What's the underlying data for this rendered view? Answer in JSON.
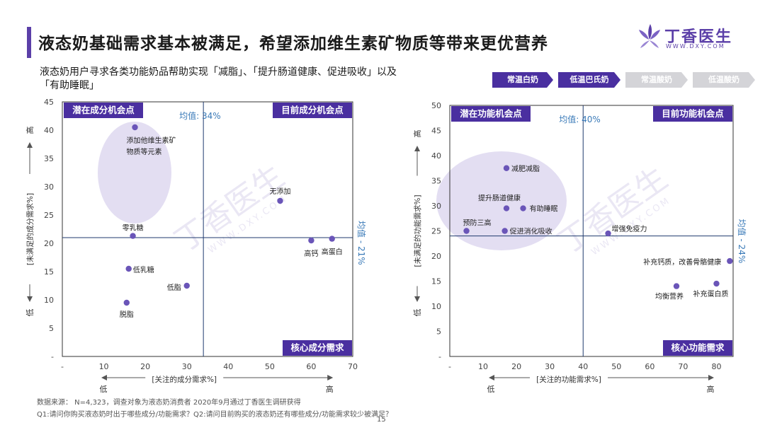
{
  "header": {
    "title": "液态奶基础需求基本被满足，希望添加维生素矿物质等带来更优营养",
    "subtitle_line1": "液态奶用户寻求各类功能奶品帮助实现「减脂」、「提升肠道健康、促进吸收」以及",
    "subtitle_line2": "「有助睡眠」"
  },
  "logo": {
    "name": "丁香医生",
    "url": "WWW.DXY.COM",
    "icon": "clove-flower-icon",
    "color": "#5b3fa8"
  },
  "watermark": {
    "name": "丁香医生",
    "url": "WWW.DXY.COM"
  },
  "product_tabs": [
    {
      "label": "常温白奶",
      "active": true
    },
    {
      "label": "低温巴氏奶",
      "active": true
    },
    {
      "label": "常温酸奶",
      "active": false
    },
    {
      "label": "低温酸奶",
      "active": false
    }
  ],
  "colors": {
    "accent": "#5b3fa8",
    "point": "#6a55b8",
    "bubble": "#e3def2",
    "mean_text": "#3a7ab8",
    "tag_bg": "#4a2fa0"
  },
  "chart_data": [
    {
      "type": "scatter",
      "xlabel": "[关注的成分需求%]",
      "ylabel": "[未满足的成分需求%]",
      "xlim": [
        0,
        70
      ],
      "ylim": [
        0,
        45
      ],
      "x_ticks": [
        "-",
        "10",
        "20",
        "30",
        "40",
        "50",
        "60",
        "70"
      ],
      "y_ticks": [
        "-",
        "5",
        "10",
        "15",
        "20",
        "25",
        "30",
        "35",
        "40",
        "45"
      ],
      "x_low": "低",
      "x_high": "高",
      "y_low": "低",
      "y_high": "高",
      "mean_x": 34,
      "mean_y": 21,
      "mean_x_label": "均值: 34%",
      "mean_y_label": "均值 - 21%",
      "quadrants": {
        "top_left": "潜在成分机会点",
        "top_right": "目前成分机会点",
        "bottom_right": "核心成分需求"
      },
      "points": [
        {
          "label": "添加他维生素矿",
          "label2": "物质等元素",
          "x": 17.5,
          "y": 40.5
        },
        {
          "label": "无添加",
          "x": 52.5,
          "y": 27.5
        },
        {
          "label": "零乳糖",
          "x": 17,
          "y": 21.3
        },
        {
          "label": "高钙",
          "x": 60,
          "y": 20.5
        },
        {
          "label": "高蛋白",
          "x": 65,
          "y": 20.8
        },
        {
          "label": "低乳糖",
          "x": 16,
          "y": 15.5
        },
        {
          "label": "低脂",
          "x": 30,
          "y": 12.5
        },
        {
          "label": "脱脂",
          "x": 15.5,
          "y": 9.5
        }
      ]
    },
    {
      "type": "scatter",
      "xlabel": "[关注的功能需求%]",
      "ylabel": "[未满足的功能需求%]",
      "xlim": [
        0,
        85
      ],
      "ylim": [
        0,
        50
      ],
      "x_ticks": [
        "-",
        "10",
        "20",
        "30",
        "40",
        "50",
        "60",
        "70",
        "80"
      ],
      "y_ticks": [
        "-",
        "5",
        "10",
        "15",
        "20",
        "25",
        "30",
        "35",
        "40",
        "45",
        "50"
      ],
      "x_low": "低",
      "x_high": "高",
      "y_low": "低",
      "y_high": "高",
      "mean_x": 40,
      "mean_y": 24,
      "mean_x_label": "均值: 40%",
      "mean_y_label": "均值 - 24%",
      "quadrants": {
        "top_left": "潜在功能机会点",
        "top_right": "目前功能机会点",
        "bottom_right": "核心功能需求"
      },
      "points": [
        {
          "label": "减肥减脂",
          "x": 17,
          "y": 37.5
        },
        {
          "label": "提升肠道健康",
          "x": 17,
          "y": 29.5
        },
        {
          "label": "有助睡眠",
          "x": 22,
          "y": 29.5
        },
        {
          "label": "预防三高",
          "x": 5,
          "y": 25
        },
        {
          "label": "促进消化吸收",
          "x": 16.5,
          "y": 25
        },
        {
          "label": "增强免疫力",
          "x": 47.5,
          "y": 24.5
        },
        {
          "label": "补充钙质，改善骨骼健康",
          "x": 84,
          "y": 19
        },
        {
          "label": "均衡营养",
          "x": 68,
          "y": 14
        },
        {
          "label": "补充蛋白质",
          "x": 80,
          "y": 14.5
        }
      ]
    }
  ],
  "footnotes": {
    "source": "数据来源： N=4,323，调查对象为液态奶消费者 2020年9月通过丁香医生调研获得",
    "questions": "Q1:请问你购买液态奶时出于哪些成分/功能需求？Q2:请问目前购买的液态奶还有哪些成分/功能需求较少被满足？"
  },
  "page_number": "15"
}
